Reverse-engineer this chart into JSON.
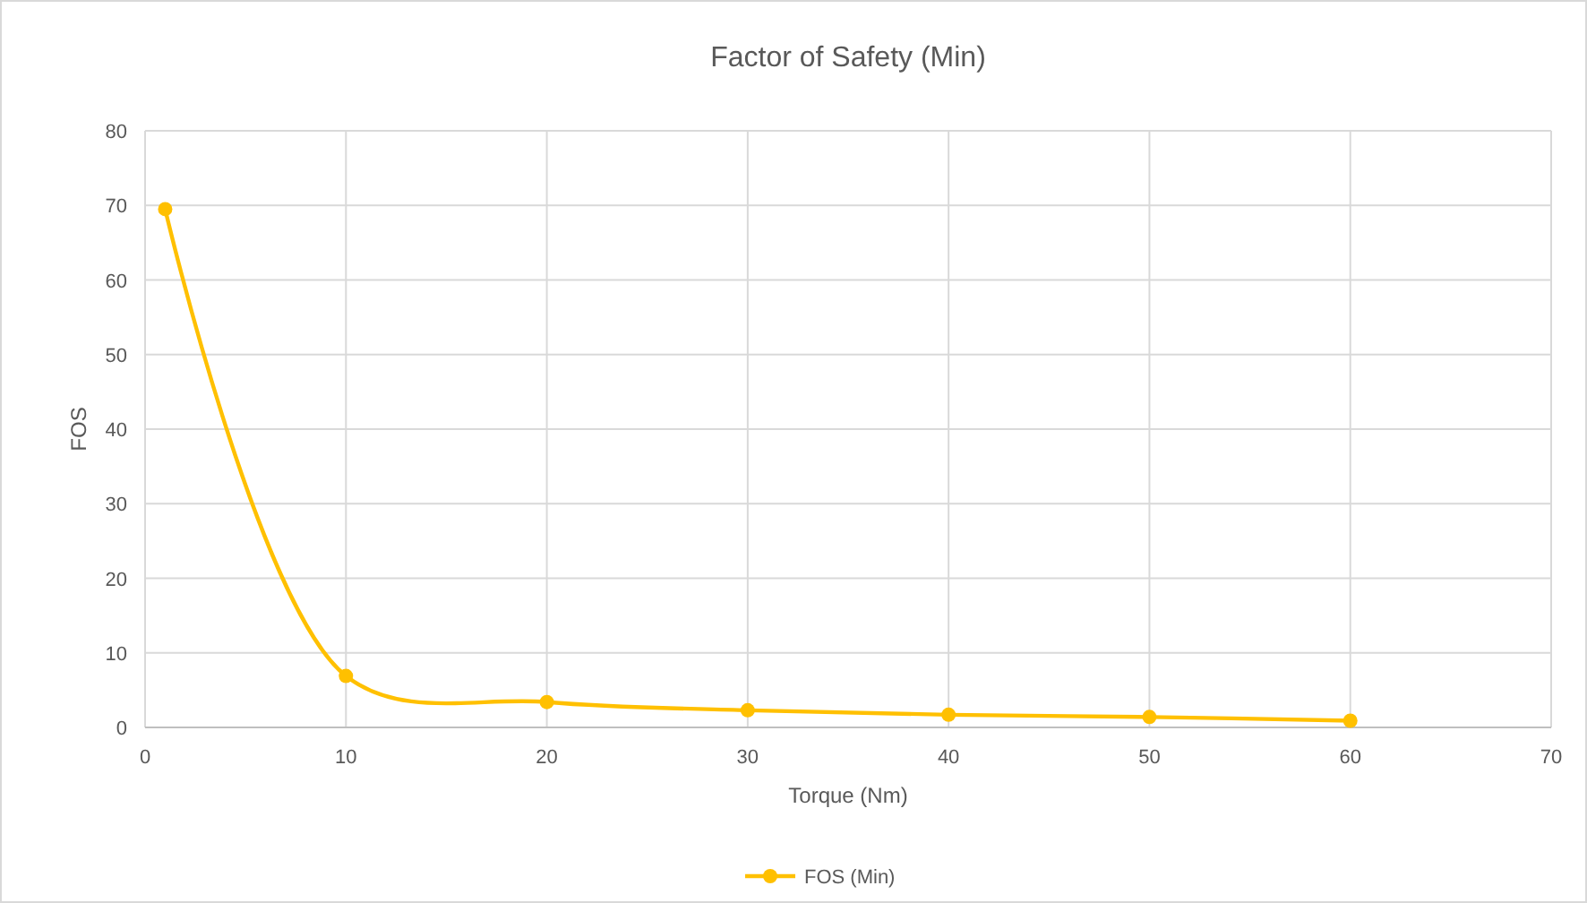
{
  "chart_data": {
    "type": "line",
    "title": "Factor of Safety (Min)",
    "xlabel": "Torque (Nm)",
    "ylabel": "FOS",
    "x": [
      1,
      10,
      20,
      30,
      40,
      50,
      60
    ],
    "series": [
      {
        "name": "FOS (Min)",
        "color": "#ffc000",
        "values": [
          69.5,
          6.9,
          3.4,
          2.3,
          1.7,
          1.4,
          0.9
        ]
      }
    ],
    "xlim": [
      0,
      70
    ],
    "xticks": [
      0,
      10,
      20,
      30,
      40,
      50,
      60,
      70
    ],
    "ylim": [
      0,
      80
    ],
    "yticks": [
      0,
      10,
      20,
      30,
      40,
      50,
      60,
      70,
      80
    ],
    "grid": true,
    "legend": "bottom",
    "marker": "circle",
    "line_style": "solid"
  }
}
